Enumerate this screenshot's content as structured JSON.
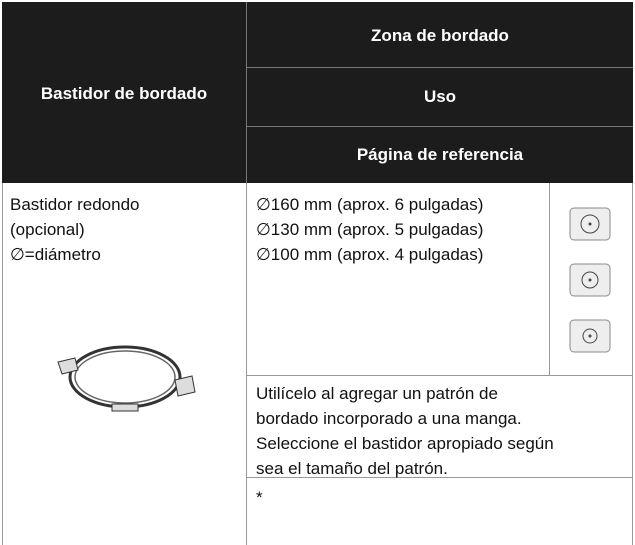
{
  "header": {
    "left": "Bastidor de bordado",
    "rows": [
      "Zona de bordado",
      "Uso",
      "Página de referencia"
    ]
  },
  "body": {
    "frame_lines": [
      "Bastidor redondo",
      "(opcional)",
      "∅=diámetro"
    ],
    "sizes": [
      "∅160 mm (aprox. 6 pulgadas)",
      "∅130 mm (aprox. 5 pulgadas)",
      "∅100 mm (aprox. 4 pulgadas)"
    ],
    "usage_lines": [
      "Utilícelo al agregar un patrón de",
      "bordado incorporado a una manga.",
      "Seleccione el bastidor apropiado según",
      "sea el tamaño del patrón."
    ],
    "reference": "*"
  }
}
